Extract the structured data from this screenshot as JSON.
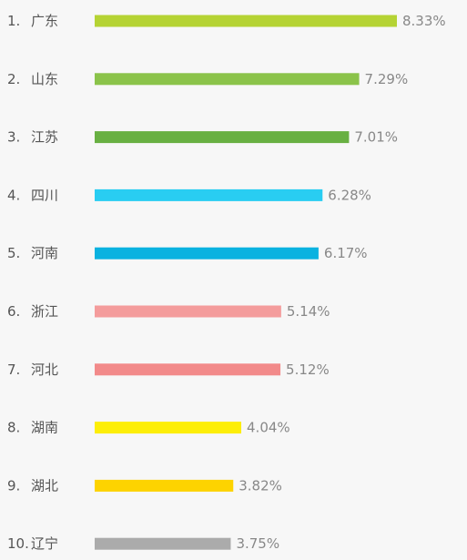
{
  "chart_data": {
    "type": "bar",
    "orientation": "horizontal",
    "grid": false,
    "legend": "none",
    "title": "",
    "xlabel": "",
    "ylabel": "",
    "xlim": [
      0,
      8.33
    ],
    "unit": "%",
    "ranks": [
      "1.",
      "2.",
      "3.",
      "4.",
      "5.",
      "6.",
      "7.",
      "8.",
      "9.",
      "10."
    ],
    "categories": [
      "广东",
      "山东",
      "江苏",
      "四川",
      "河南",
      "浙江",
      "河北",
      "湖南",
      "湖北",
      "辽宁"
    ],
    "values": [
      8.33,
      7.29,
      7.01,
      6.28,
      6.17,
      5.14,
      5.12,
      4.04,
      3.82,
      3.75
    ],
    "value_labels": [
      "8.33%",
      "7.29%",
      "7.01%",
      "6.28%",
      "6.17%",
      "5.14%",
      "5.12%",
      "4.04%",
      "3.82%",
      "3.75%"
    ],
    "colors": [
      "#b5d334",
      "#8bc34a",
      "#68b042",
      "#29cdf2",
      "#0ab2e0",
      "#f49c9c",
      "#f28a8a",
      "#fdee08",
      "#fdd300",
      "#ababab"
    ]
  }
}
